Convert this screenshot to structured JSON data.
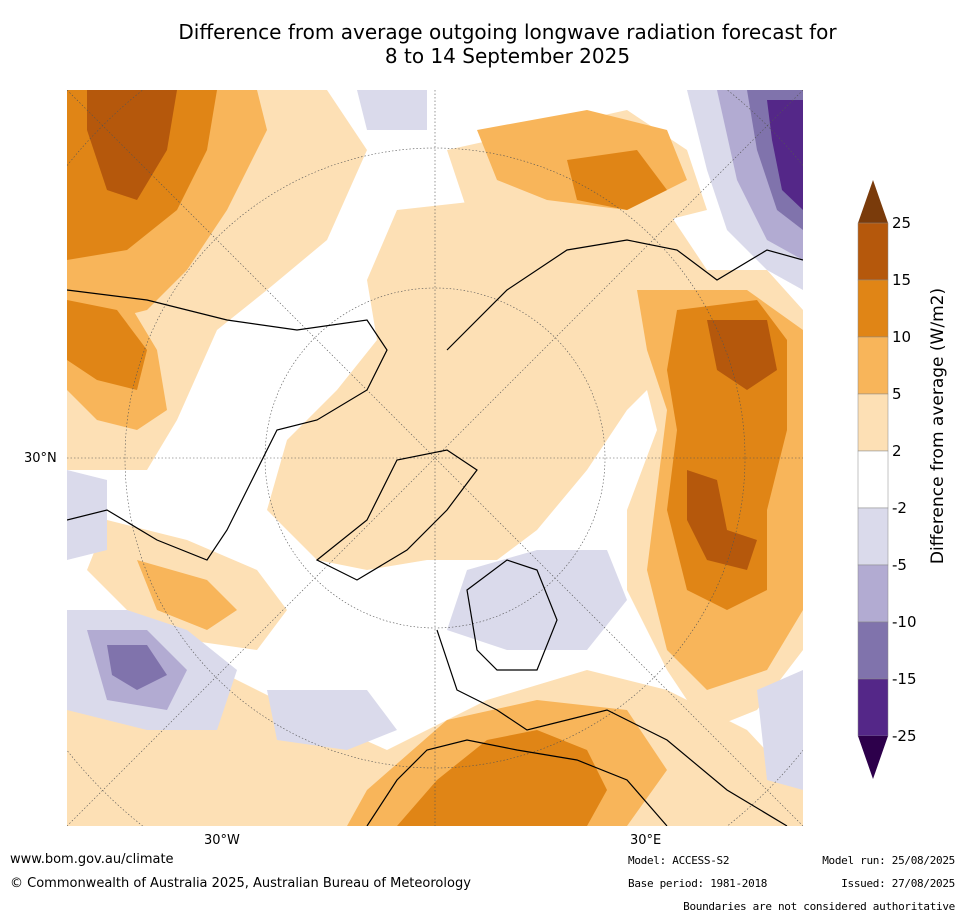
{
  "title_line1": "Difference from average outgoing longwave radiation forecast for",
  "title_line2": "8 to 14 September 2025",
  "map": {
    "lon_labels": [
      "30°W",
      "30°E"
    ],
    "lat_labels": [
      "30°N"
    ]
  },
  "colorbar": {
    "title": "Difference from average (W/m2)",
    "ticks": [
      "25",
      "15",
      "10",
      "5",
      "2",
      "-2",
      "-5",
      "-10",
      "-15",
      "-25"
    ],
    "colors": [
      "#7a3b0b",
      "#b5580c",
      "#e08516",
      "#f8b55a",
      "#fde0b5",
      "#ffffff",
      "#dadaeb",
      "#b2abd2",
      "#8073ac",
      "#542788",
      "#2d004b"
    ]
  },
  "footer": {
    "url": "www.bom.gov.au/climate",
    "copyright": "© Commonwealth of Australia 2025, Australian Bureau of Meteorology",
    "model": "Model: ACCESS-S2",
    "base_period": "Base period: 1981-2018",
    "model_run": "Model run: 25/08/2025",
    "issued": "Issued: 27/08/2025",
    "boundaries": "Boundaries are not considered authoritative"
  }
}
